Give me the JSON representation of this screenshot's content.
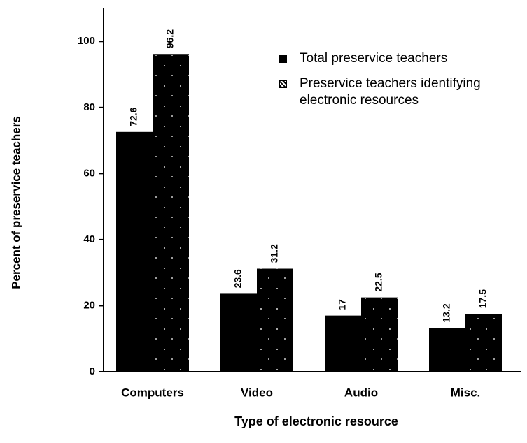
{
  "chart_data": {
    "type": "bar",
    "categories": [
      "Computers",
      "Video",
      "Audio",
      "Misc."
    ],
    "series": [
      {
        "name": "Total preservice teachers",
        "color": "#000000",
        "values": [
          72.6,
          23.6,
          17,
          13.2
        ]
      },
      {
        "name": "Preservice teachers identifying electronic resources",
        "color": "#000000",
        "hatch": true,
        "values": [
          96.2,
          31.2,
          22.5,
          17.5
        ]
      }
    ],
    "xlabel": "Type of electronic resource",
    "ylabel": "Percent of preservice teachers",
    "ylim": [
      0,
      110
    ],
    "yticks": [
      0,
      20,
      40,
      60,
      80,
      100
    ],
    "legend": "upper right",
    "grid": false
  }
}
